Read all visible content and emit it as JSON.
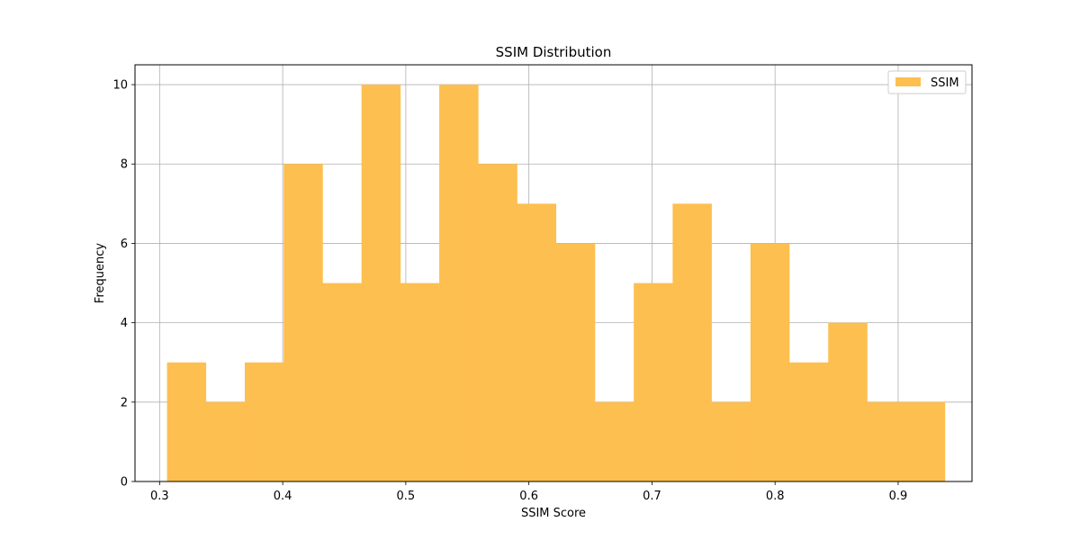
{
  "chart_data": {
    "type": "bar",
    "title": "SSIM Distribution",
    "xlabel": "SSIM Score",
    "ylabel": "Frequency",
    "xlim": [
      0.28,
      0.96
    ],
    "ylim": [
      0,
      10.5
    ],
    "xticks": [
      "0.3",
      "0.4",
      "0.5",
      "0.6",
      "0.7",
      "0.8",
      "0.9"
    ],
    "yticks": [
      "0",
      "2",
      "4",
      "6",
      "8",
      "10"
    ],
    "grid": true,
    "legend_position": "top-right",
    "bin_edges": [
      0.306,
      0.3376,
      0.3692,
      0.4008,
      0.4324,
      0.464,
      0.4956,
      0.5272,
      0.5588,
      0.5904,
      0.622,
      0.6536,
      0.6852,
      0.7168,
      0.7484,
      0.78,
      0.8116,
      0.8432,
      0.8748,
      0.9064,
      0.938
    ],
    "series": [
      {
        "name": "SSIM",
        "color": "#fdbf4f",
        "values": [
          3,
          2,
          3,
          8,
          5,
          10,
          5,
          10,
          8,
          7,
          6,
          2,
          5,
          7,
          2,
          6,
          3,
          4,
          2,
          2
        ]
      }
    ]
  }
}
